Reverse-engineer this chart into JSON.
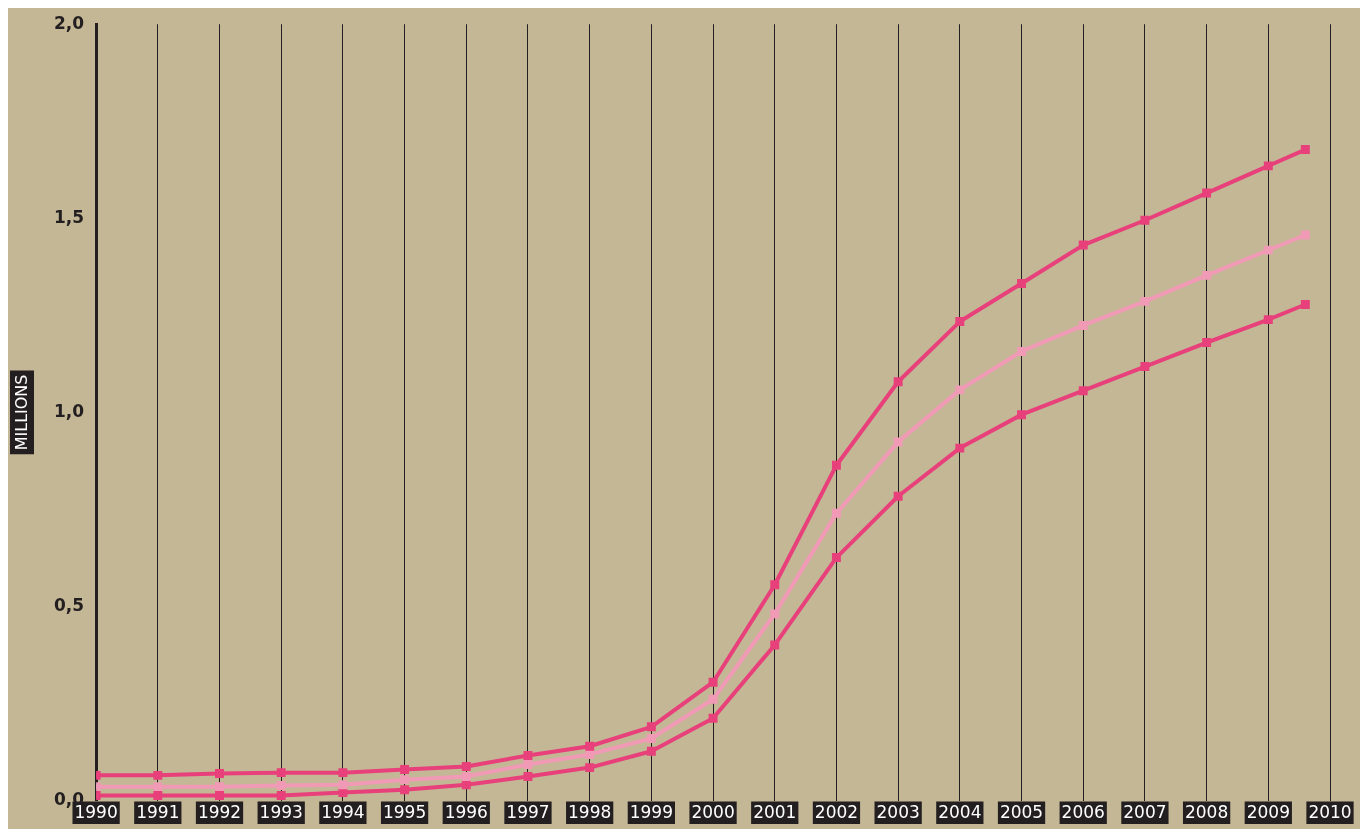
{
  "chart_data": {
    "type": "line",
    "ylabel": "MILLIONS",
    "x": [
      1990,
      1991,
      1992,
      1993,
      1994,
      1995,
      1996,
      1997,
      1998,
      1999,
      2000,
      2001,
      2002,
      2003,
      2004,
      2005,
      2006,
      2007,
      2008,
      2009,
      2009.6
    ],
    "series": [
      {
        "color": "#e8407a",
        "values": [
          0.065,
          0.065,
          0.07,
          0.072,
          0.072,
          0.08,
          0.088,
          0.116,
          0.14,
          0.19,
          0.305,
          0.556,
          0.864,
          1.079,
          1.234,
          1.332,
          1.431,
          1.495,
          1.565,
          1.635,
          1.677
        ]
      },
      {
        "color": "#f09ab6",
        "values": [
          0.036,
          0.036,
          0.036,
          0.039,
          0.041,
          0.054,
          0.062,
          0.093,
          0.119,
          0.16,
          0.261,
          0.481,
          0.74,
          0.924,
          1.058,
          1.157,
          1.224,
          1.286,
          1.353,
          1.418,
          1.457
        ]
      },
      {
        "color": "#e8407a",
        "values": [
          0.013,
          0.013,
          0.013,
          0.013,
          0.021,
          0.028,
          0.041,
          0.062,
          0.085,
          0.127,
          0.212,
          0.401,
          0.626,
          0.784,
          0.908,
          0.994,
          1.056,
          1.118,
          1.18,
          1.239,
          1.278
        ]
      }
    ],
    "xlim": [
      1990,
      2010
    ],
    "xticks": [
      1990,
      1991,
      1992,
      1993,
      1994,
      1995,
      1996,
      1997,
      1998,
      1999,
      2000,
      2001,
      2002,
      2003,
      2004,
      2005,
      2006,
      2007,
      2008,
      2009,
      2010
    ],
    "ylim": [
      0,
      2
    ],
    "yticks": [
      {
        "value": 0,
        "label": "0,0"
      },
      {
        "value": 0.5,
        "label": "0,5"
      },
      {
        "value": 1,
        "label": "1,0"
      },
      {
        "value": 1.5,
        "label": "1,5"
      },
      {
        "value": 2,
        "label": "2,0"
      }
    ],
    "grid": "x",
    "marker": "square",
    "line_style": "solid",
    "legend": false
  }
}
